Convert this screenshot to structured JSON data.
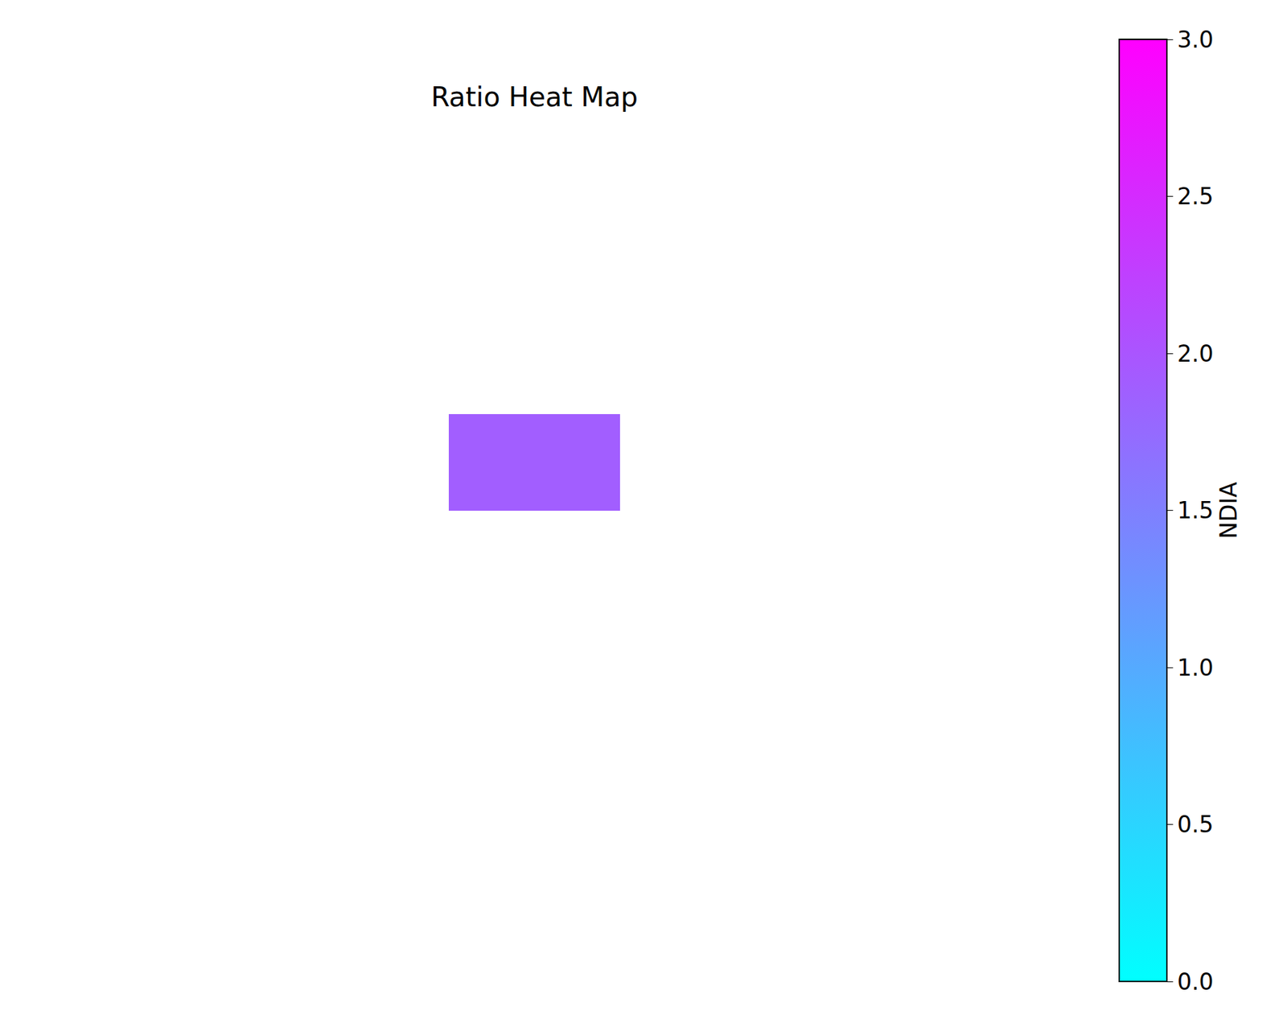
{
  "chart_data": {
    "type": "heatmap",
    "title": "Ratio Heat Map",
    "tick_labels": false,
    "z": [
      [
        null,
        null,
        null,
        null,
        null,
        null,
        null,
        null,
        null,
        null,
        null,
        null
      ],
      [
        null,
        null,
        null,
        null,
        null,
        null,
        null,
        null,
        null,
        null,
        null,
        null
      ],
      [
        null,
        null,
        null,
        null,
        null,
        null,
        null,
        null,
        null,
        null,
        null,
        null
      ],
      [
        null,
        null,
        null,
        null,
        null,
        1.9,
        1.9,
        null,
        null,
        null,
        null,
        null
      ],
      [
        null,
        null,
        null,
        null,
        null,
        null,
        null,
        null,
        null,
        null,
        null,
        null
      ],
      [
        null,
        null,
        null,
        null,
        null,
        null,
        null,
        null,
        null,
        null,
        null,
        null
      ],
      [
        null,
        null,
        null,
        null,
        null,
        null,
        null,
        null,
        null,
        null,
        null,
        null
      ],
      [
        null,
        null,
        null,
        null,
        null,
        null,
        null,
        null,
        null,
        null,
        null,
        null
      ]
    ],
    "colorbar": {
      "title": "NDIA",
      "range": [
        0,
        3
      ],
      "colors": [
        "#00ffff",
        "#ff00ff"
      ],
      "ticks": [
        {
          "value": 0,
          "label": "0.0"
        },
        {
          "value": 0.5,
          "label": "0.5"
        },
        {
          "value": 1,
          "label": "1.0"
        },
        {
          "value": 1.5,
          "label": "1.5"
        },
        {
          "value": 2,
          "label": "2.0"
        },
        {
          "value": 2.5,
          "label": "2.5"
        },
        {
          "value": 3,
          "label": "3.0"
        }
      ]
    }
  }
}
